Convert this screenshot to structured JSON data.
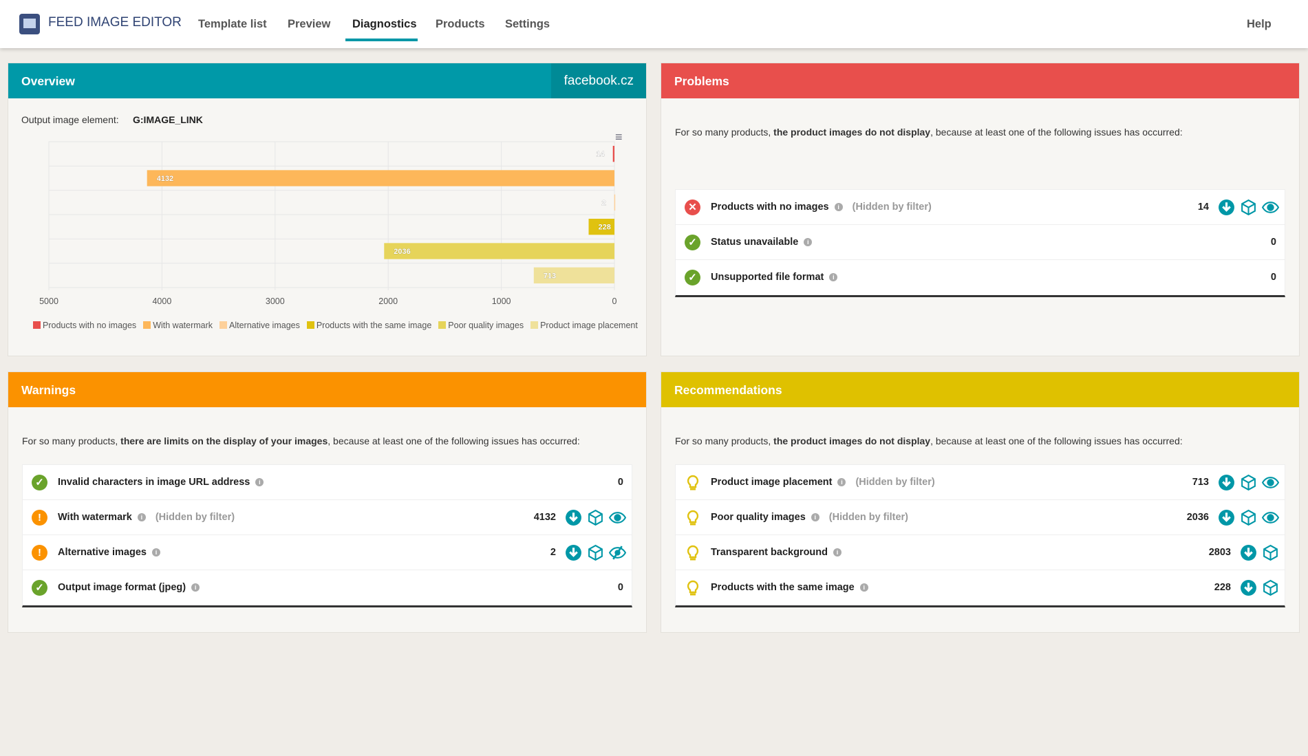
{
  "app": {
    "title": "FEED IMAGE EDITOR",
    "nav": [
      "Template list",
      "Preview",
      "Diagnostics",
      "Products",
      "Settings"
    ],
    "active": "Diagnostics",
    "help": "Help"
  },
  "overview": {
    "title": "Overview",
    "site": "facebook.cz",
    "output_label": "Output image element:",
    "output_value": "G:IMAGE_LINK",
    "header_color": "#0099a8"
  },
  "chart_data": {
    "type": "bar",
    "orientation": "horizontal",
    "x_reversed": true,
    "xlim": [
      0,
      5000
    ],
    "xticks": [
      "5000",
      "4000",
      "3000",
      "2000",
      "1000",
      "0"
    ],
    "grid": true,
    "legend_position": "bottom",
    "series": [
      {
        "name": "Products with no images",
        "value": 14,
        "color": "#e84f4c"
      },
      {
        "name": "With watermark",
        "value": 4132,
        "color": "#fdb75a"
      },
      {
        "name": "Alternative images",
        "value": 2,
        "color": "#fdd09a"
      },
      {
        "name": "Products with the same image",
        "value": 228,
        "color": "#e0c210"
      },
      {
        "name": "Poor quality images",
        "value": 2036,
        "color": "#e6d45a"
      },
      {
        "name": "Product image placement",
        "value": 713,
        "color": "#efe19a"
      }
    ]
  },
  "problems": {
    "title": "Problems",
    "color": "#e84f4c",
    "intro_pre": "For so many products, ",
    "intro_bold": "the product images do not display",
    "intro_post": ", because at least one of the following issues has occurred:",
    "rows": [
      {
        "status": "error",
        "label": "Products with no images",
        "hidden": "(Hidden by filter)",
        "count": "14",
        "actions": [
          "download",
          "box",
          "eye"
        ]
      },
      {
        "status": "ok",
        "label": "Status unavailable",
        "count": "0",
        "actions": []
      },
      {
        "status": "ok",
        "label": "Unsupported file format",
        "count": "0",
        "actions": []
      }
    ]
  },
  "warnings": {
    "title": "Warnings",
    "color": "#fb9200",
    "intro_pre": "For so many products, ",
    "intro_bold": "there are limits on the display of your images",
    "intro_post": ", because at least one of the following issues has occurred:",
    "rows": [
      {
        "status": "ok",
        "label": "Invalid characters in image URL address",
        "count": "0",
        "actions": []
      },
      {
        "status": "warn",
        "label": "With watermark",
        "hidden": "(Hidden by filter)",
        "count": "4132",
        "actions": [
          "download",
          "box",
          "eye"
        ]
      },
      {
        "status": "warn",
        "label": "Alternative images",
        "count": "2",
        "actions": [
          "download",
          "box",
          "eye-slash"
        ]
      },
      {
        "status": "ok",
        "label": "Output image format (jpeg)",
        "count": "0",
        "actions": []
      }
    ]
  },
  "recommendations": {
    "title": "Recommendations",
    "color": "#dfc100",
    "intro_pre": "For so many products, ",
    "intro_bold": "the product images do not display",
    "intro_post": ", because at least one of the following issues has occurred:",
    "rows": [
      {
        "status": "tip",
        "label": "Product image placement",
        "hidden": "(Hidden by filter)",
        "count": "713",
        "actions": [
          "download",
          "box",
          "eye"
        ]
      },
      {
        "status": "tip",
        "label": "Poor quality images",
        "hidden": "(Hidden by filter)",
        "count": "2036",
        "actions": [
          "download",
          "box",
          "eye"
        ]
      },
      {
        "status": "tip",
        "label": "Transparent background",
        "count": "2803",
        "actions": [
          "download",
          "box"
        ]
      },
      {
        "status": "tip",
        "label": "Products with the same image",
        "count": "228",
        "actions": [
          "download",
          "box"
        ]
      }
    ]
  }
}
